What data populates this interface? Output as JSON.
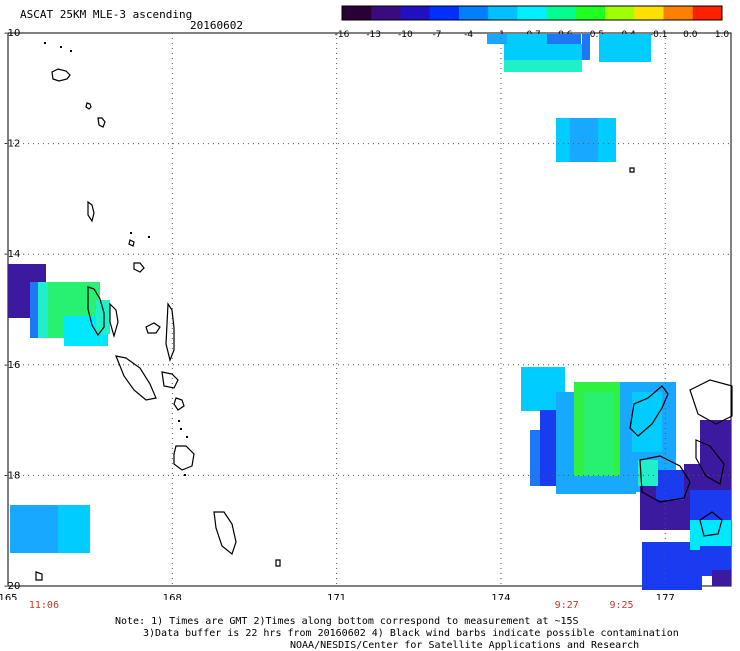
{
  "header": {
    "title": "ASCAT 25KM MLE-3 ascending",
    "date": "20160602"
  },
  "colorbar": {
    "labels": [
      "-16",
      "-13",
      "-10",
      "-7",
      "-4",
      "-1",
      "-0.7",
      "-0.6",
      "-0.5",
      "-0.4",
      "-0.1",
      "0.0",
      "1.0"
    ],
    "colors": [
      "#2a0036",
      "#3a0a80",
      "#2010c0",
      "#0030ff",
      "#0080ff",
      "#00c0ff",
      "#00f0ff",
      "#00ff90",
      "#20ff20",
      "#a0ff00",
      "#ffe000",
      "#ff8000",
      "#ff2000"
    ]
  },
  "map": {
    "lon_labels": [
      "165",
      "168",
      "171",
      "174",
      "177"
    ],
    "lat_labels": [
      "-10",
      "-12",
      "-14",
      "-16",
      "-18",
      "-20"
    ],
    "time_labels": [
      {
        "text": "11:06",
        "lon": 165.6
      },
      {
        "text": "9:27",
        "lon": 175.2
      },
      {
        "text": "9:25",
        "lon": 176.2
      }
    ]
  },
  "notes": [
    "Note: 1) Times are GMT 2)Times along bottom correspond to measurement at ~15S",
    "3)Data buffer is 22 hrs from 20160602 4) Black wind barbs indicate possible contamination",
    "NOAA/NESDIS/Center for Satellite Applications and Research"
  ]
}
